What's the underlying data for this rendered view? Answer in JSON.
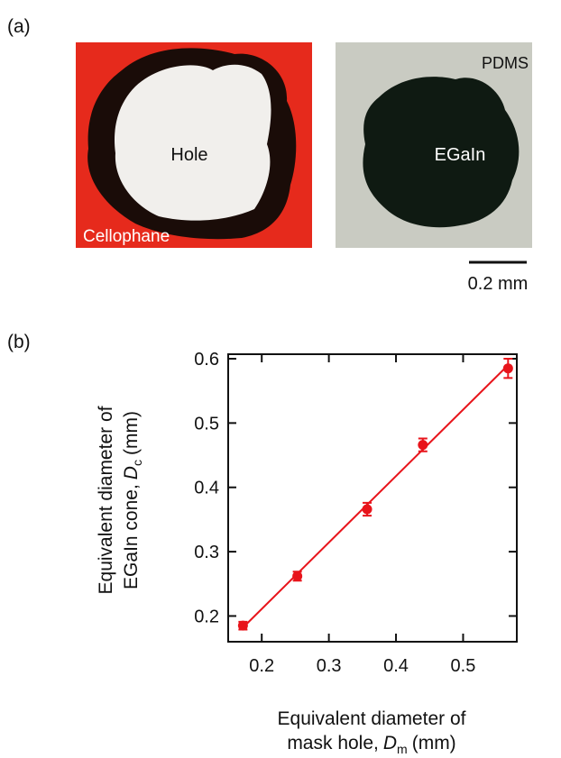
{
  "panel_a": {
    "label": "(a)",
    "left_image": {
      "center_text": "Hole",
      "corner_text": "Cellophane"
    },
    "right_image": {
      "center_text": "EGaIn",
      "corner_text": "PDMS"
    },
    "scale_bar": "0.2 mm"
  },
  "chart_data": {
    "type": "scatter",
    "panel_label": "(b)",
    "x_label": {
      "line1": "Equivalent diameter of",
      "line2": "mask hole,",
      "symbol": "D",
      "subscript": "m",
      "unit": "(mm)"
    },
    "y_label": {
      "line1": "Equivalent diameter of",
      "line2": "EGaIn cone,",
      "symbol": "D",
      "subscript": "c",
      "unit": "(mm)"
    },
    "x": [
      0.172,
      0.253,
      0.357,
      0.44,
      0.567
    ],
    "series": [
      {
        "color": "#e8141b",
        "values": [
          0.185,
          0.262,
          0.366,
          0.466,
          0.585
        ],
        "errors": [
          0.006,
          0.007,
          0.01,
          0.01,
          0.015
        ]
      }
    ],
    "fit_line": {
      "x": [
        0.17,
        0.567
      ],
      "y": [
        0.18,
        0.59
      ],
      "color": "#e8141b"
    },
    "xlim": [
      0.15,
      0.58
    ],
    "ylim": [
      0.16,
      0.607
    ],
    "xticks": [
      0.2,
      0.3,
      0.4,
      0.5
    ],
    "yticks": [
      0.2,
      0.3,
      0.4,
      0.5,
      0.6
    ]
  }
}
